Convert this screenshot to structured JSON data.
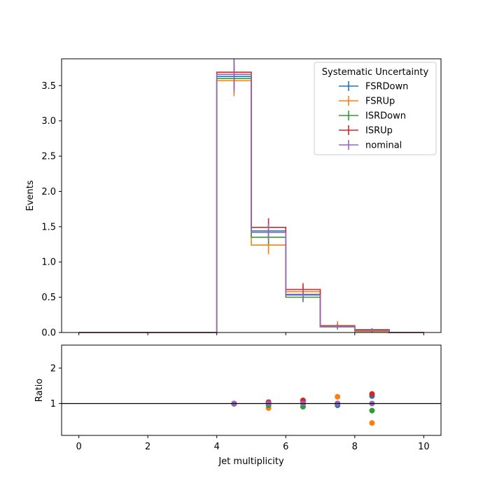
{
  "chart_data": {
    "type": "histogram",
    "title": "",
    "xlabel": "Jet multiplicity",
    "ylabel": "Events",
    "ratio_ylabel": "Ratio",
    "xlim": [
      -0.5,
      10.5
    ],
    "ylim": [
      0,
      3.88
    ],
    "ratio_ylim": [
      0.1,
      2.65
    ],
    "x_ticks": [
      0,
      2,
      4,
      6,
      8,
      10
    ],
    "y_ticks": [
      0.0,
      0.5,
      1.0,
      1.5,
      2.0,
      2.5,
      3.0,
      3.5
    ],
    "y_tick_labels": [
      "0.0",
      "0.5",
      "1.0",
      "1.5",
      "2.0",
      "2.5",
      "3.0",
      "3.5"
    ],
    "ratio_y_ticks": [
      1,
      2
    ],
    "ratio_reference": 1,
    "bin_edges": [
      0,
      1,
      2,
      3,
      4,
      5,
      6,
      7,
      8,
      9,
      10
    ],
    "grid": false,
    "legend": {
      "title": "Systematic Uncertainty",
      "placement": "top-right"
    },
    "series": [
      {
        "name": "FSRDown",
        "color": "#1f77b4",
        "values": [
          0,
          0,
          0,
          0,
          3.63,
          1.44,
          0.54,
          0.08,
          0.035,
          0
        ],
        "errors": [
          0,
          0,
          0,
          0,
          0.18,
          0.11,
          0.07,
          0.03,
          0.02,
          0
        ],
        "ratio": [
          null,
          null,
          null,
          null,
          1.0,
          1.03,
          1.0,
          0.95,
          1.21,
          null
        ]
      },
      {
        "name": "FSRUp",
        "color": "#ff7f0e",
        "values": [
          0,
          0,
          0,
          0,
          3.57,
          1.24,
          0.58,
          0.1,
          0.015,
          0
        ],
        "errors": [
          0,
          0,
          0,
          0,
          0.22,
          0.13,
          0.08,
          0.06,
          0.01,
          0
        ],
        "ratio": [
          null,
          null,
          null,
          null,
          0.99,
          0.87,
          1.05,
          1.19,
          0.45,
          null
        ]
      },
      {
        "name": "ISRDown",
        "color": "#2ca02c",
        "values": [
          0,
          0,
          0,
          0,
          3.6,
          1.35,
          0.5,
          0.085,
          0.025,
          0
        ],
        "errors": [
          0,
          0,
          0,
          0,
          0.18,
          0.1,
          0.07,
          0.03,
          0.02,
          0
        ],
        "ratio": [
          null,
          null,
          null,
          null,
          0.99,
          0.95,
          0.91,
          1.0,
          0.8,
          null
        ]
      },
      {
        "name": "ISRUp",
        "color": "#d62728",
        "values": [
          0,
          0,
          0,
          0,
          3.69,
          1.49,
          0.61,
          0.09,
          0.04,
          0
        ],
        "errors": [
          0,
          0,
          0,
          0,
          0.22,
          0.13,
          0.09,
          0.03,
          0.02,
          0
        ],
        "ratio": [
          null,
          null,
          null,
          null,
          1.0,
          1.04,
          1.09,
          1.0,
          1.27,
          null
        ]
      },
      {
        "name": "nominal",
        "color": "#9467bd",
        "values": [
          0,
          0,
          0,
          0,
          3.66,
          1.42,
          0.53,
          0.085,
          0.03,
          0
        ],
        "errors": [
          0,
          0,
          0,
          0,
          0.25,
          0.12,
          0.08,
          0.03,
          0.02,
          0
        ],
        "ratio": [
          null,
          null,
          null,
          null,
          1.0,
          1.0,
          1.0,
          1.0,
          1.0,
          null
        ]
      }
    ]
  }
}
